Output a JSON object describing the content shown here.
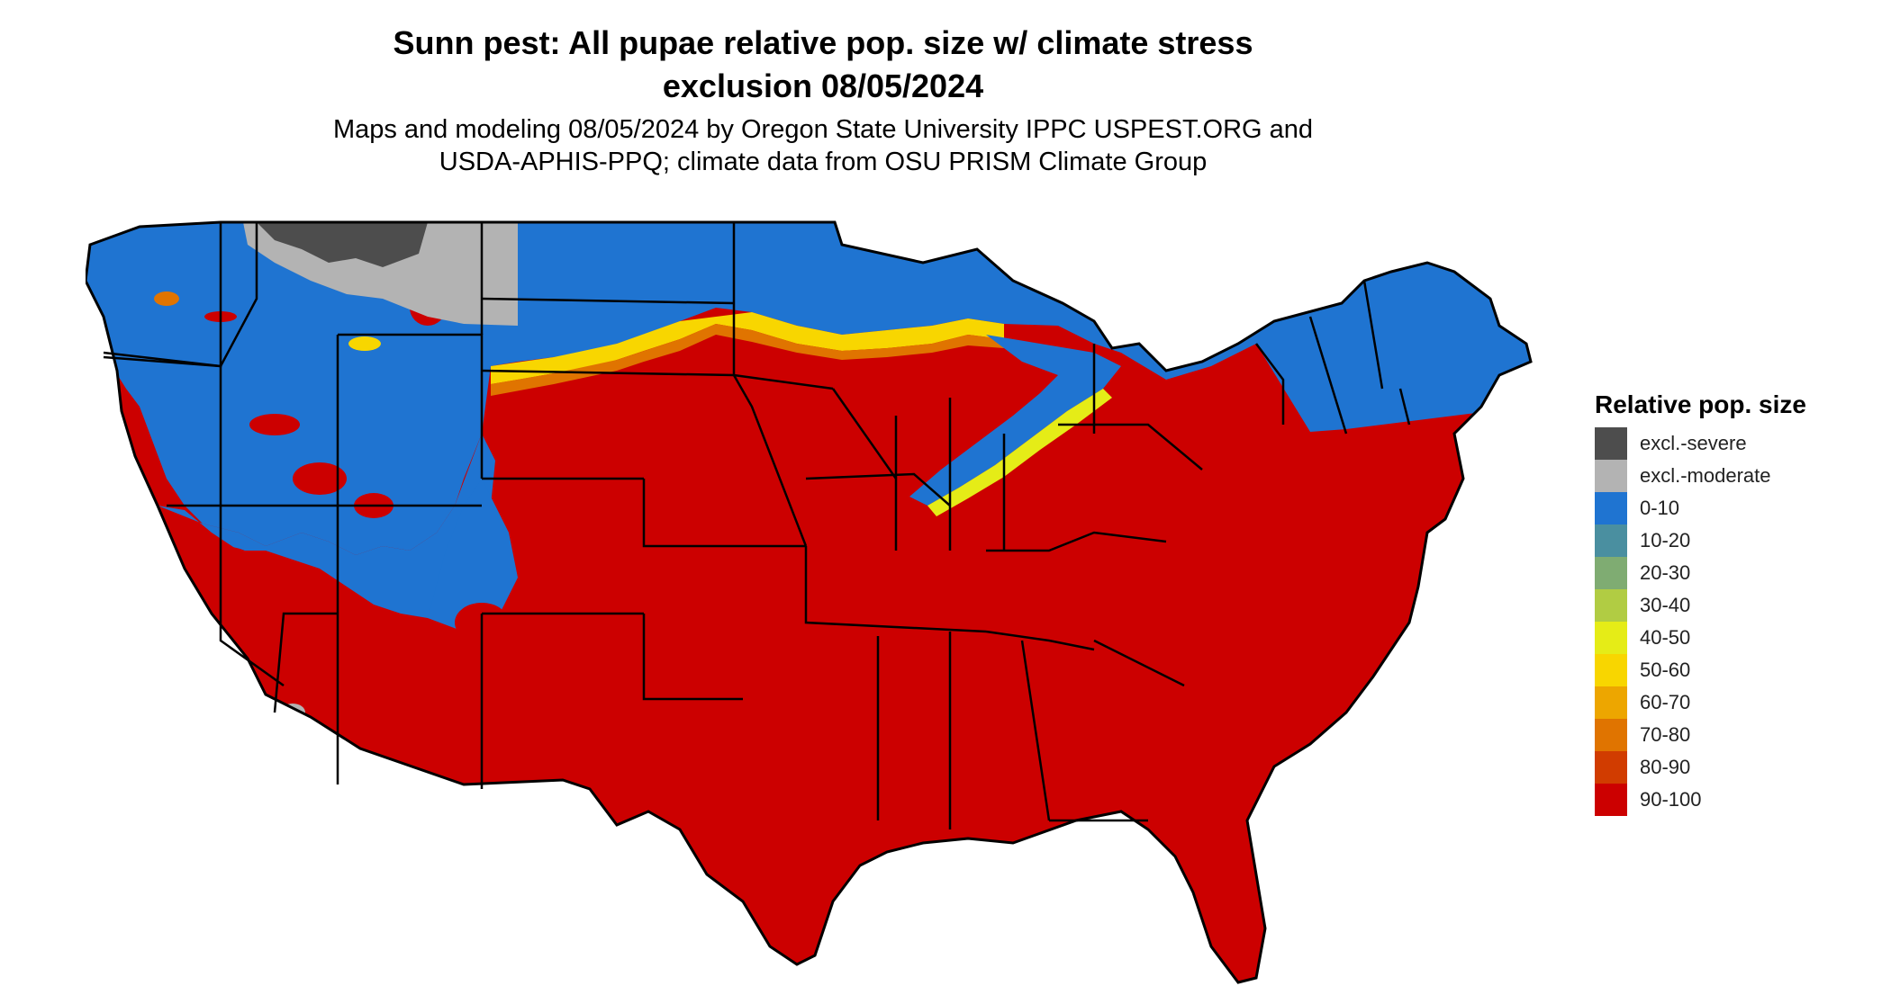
{
  "title": {
    "line1": "Sunn pest: All pupae relative pop. size w/ climate stress",
    "line2": "exclusion 08/05/2024"
  },
  "subtitle": {
    "line1": "Maps and modeling 08/05/2024 by Oregon State University IPPC USPEST.ORG and",
    "line2": "USDA-APHIS-PPQ; climate data from OSU PRISM Climate Group"
  },
  "legend": {
    "title": "Relative pop. size",
    "items": [
      {
        "label": "excl.-severe",
        "color": "#4d4d4d"
      },
      {
        "label": "excl.-moderate",
        "color": "#b3b3b3"
      },
      {
        "label": "0-10",
        "color": "#1f74d1"
      },
      {
        "label": "10-20",
        "color": "#4a8fa0"
      },
      {
        "label": "20-30",
        "color": "#7fac72"
      },
      {
        "label": "30-40",
        "color": "#b1cc43"
      },
      {
        "label": "40-50",
        "color": "#e5ec17"
      },
      {
        "label": "50-60",
        "color": "#f8d600"
      },
      {
        "label": "60-70",
        "color": "#eda600"
      },
      {
        "label": "70-80",
        "color": "#e07400"
      },
      {
        "label": "80-90",
        "color": "#d13c00"
      },
      {
        "label": "90-100",
        "color": "#cc0000"
      }
    ]
  },
  "map": {
    "region": "Contiguous United States",
    "state_border_color": "#000000"
  }
}
